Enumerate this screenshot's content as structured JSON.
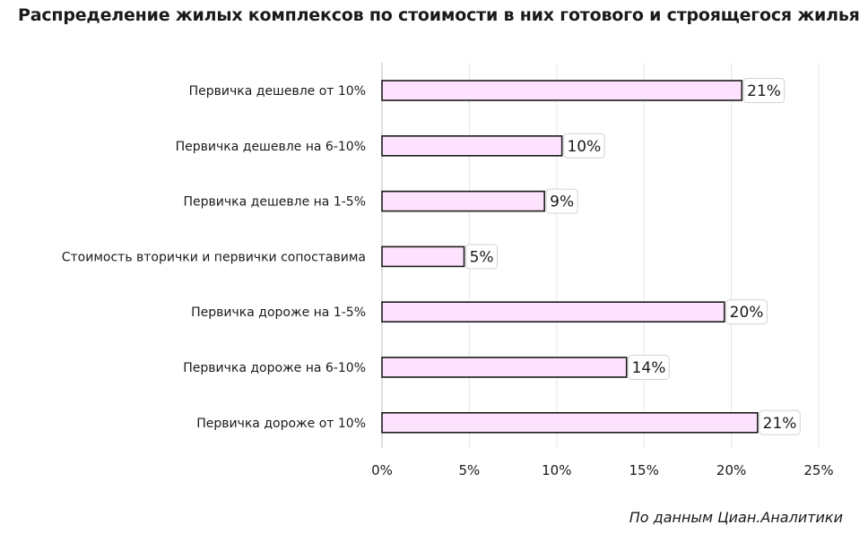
{
  "chart_data": {
    "type": "bar",
    "orientation": "horizontal",
    "title": "Распределение жилых комплексов по стоимости в них готового и строящегося жилья",
    "categories": [
      "Первичка дешевле от 10%",
      "Первичка дешевле на 6-10%",
      "Первичка дешевле на 1-5%",
      "Стоимость вторички и первички сопоставима",
      "Первичка дороже на 1-5%",
      "Первичка дороже на 6-10%",
      "Первичка дороже от 10%"
    ],
    "values": [
      20.6,
      10.3,
      9.3,
      4.7,
      19.6,
      14.0,
      21.5
    ],
    "data_labels": [
      "21%",
      "10%",
      "9%",
      "5%",
      "20%",
      "14%",
      "21%"
    ],
    "xlim": [
      0,
      25
    ],
    "x_ticks": [
      0,
      5,
      10,
      15,
      20,
      25
    ],
    "x_tick_labels": [
      "0%",
      "5%",
      "10%",
      "15%",
      "20%",
      "25%"
    ],
    "grid": "vertical",
    "bar_color": "#fde2fd",
    "bar_edge_color": "#1a1a1a",
    "source": "По данным Циан.Аналитики"
  }
}
